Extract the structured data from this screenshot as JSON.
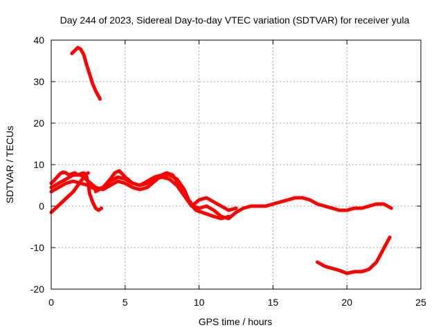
{
  "chart_data": {
    "type": "line",
    "title": "Day 244 of 2023, Sidereal Day-to-day VTEC variation (SDTVAR) for receiver yula",
    "xlabel": "GPS time / hours",
    "ylabel": "SDTVAR / TECUs",
    "xlim": [
      0,
      25
    ],
    "ylim": [
      -20,
      40
    ],
    "xticks": [
      0,
      5,
      10,
      15,
      20,
      25
    ],
    "yticks": [
      -20,
      -10,
      0,
      10,
      20,
      30,
      40
    ],
    "grid": true,
    "line_color": "#ff0000",
    "series": [
      {
        "name": "arc-1",
        "x": [
          1.4,
          1.6,
          1.8,
          2.0,
          2.2,
          2.4,
          2.6,
          2.8,
          3.0,
          3.2,
          3.3
        ],
        "y": [
          36.8,
          37.5,
          38.2,
          37.8,
          36.5,
          34.0,
          31.8,
          29.5,
          27.8,
          26.5,
          25.8
        ]
      },
      {
        "name": "arc-2",
        "x": [
          0.0,
          0.2,
          0.4,
          0.6,
          0.8,
          1.0,
          1.2,
          1.4,
          1.6,
          1.8,
          2.0,
          2.2,
          2.4,
          2.5,
          2.6,
          2.8,
          3.0,
          3.2,
          3.4
        ],
        "y": [
          5.5,
          6.2,
          7.0,
          7.8,
          8.2,
          8.0,
          7.5,
          7.8,
          8.0,
          7.5,
          7.8,
          8.0,
          7.0,
          5.5,
          3.0,
          1.0,
          -0.5,
          -1.0,
          -0.5
        ]
      },
      {
        "name": "arc-3",
        "x": [
          0.0,
          0.3,
          0.6,
          0.9,
          1.2,
          1.5,
          1.8,
          2.1,
          2.3,
          2.5
        ],
        "y": [
          -1.5,
          -0.5,
          0.5,
          1.5,
          2.5,
          3.5,
          5.0,
          6.5,
          7.5,
          8.0
        ]
      },
      {
        "name": "arc-4",
        "x": [
          0.0,
          0.5,
          1.0,
          1.5,
          2.0,
          2.5,
          3.0,
          3.5,
          4.0,
          4.3,
          4.6,
          5.0,
          5.5,
          6.0,
          6.5,
          7.0,
          7.5,
          8.0,
          8.5,
          9.0,
          9.3,
          9.6,
          10.0,
          10.5,
          11.0,
          11.5,
          12.0,
          12.5,
          13.0,
          13.5,
          14.0,
          14.5,
          15.0,
          15.5,
          16.0,
          16.5,
          17.0,
          17.5,
          18.0,
          18.5,
          19.0,
          19.5,
          20.0,
          20.5,
          21.0,
          21.5,
          22.0,
          22.5,
          23.0
        ],
        "y": [
          3.5,
          4.5,
          5.5,
          6.0,
          5.5,
          5.0,
          4.0,
          4.5,
          6.5,
          8.0,
          8.5,
          7.0,
          5.5,
          5.0,
          6.0,
          7.0,
          7.5,
          7.5,
          6.5,
          4.0,
          1.5,
          0.0,
          -0.5,
          0.0,
          -1.0,
          -2.5,
          -3.0,
          -1.5,
          -0.5,
          0.0,
          0.0,
          0.0,
          0.5,
          1.0,
          1.5,
          2.0,
          2.0,
          1.5,
          0.5,
          0.0,
          -0.5,
          -1.0,
          -1.0,
          -0.5,
          -0.5,
          0.0,
          0.5,
          0.5,
          -0.5
        ]
      },
      {
        "name": "arc-5",
        "x": [
          0.0,
          0.5,
          1.0,
          1.5,
          2.0,
          2.5,
          3.0,
          3.5,
          4.0,
          4.5,
          5.0,
          5.5,
          6.0,
          6.5,
          7.0,
          7.5,
          7.8,
          8.2,
          8.6,
          9.0,
          9.4,
          9.8,
          10.2,
          10.6,
          11.0,
          11.5,
          12.0
        ],
        "y": [
          4.5,
          5.5,
          6.5,
          7.5,
          7.5,
          6.0,
          4.5,
          4.0,
          5.0,
          6.0,
          5.5,
          4.5,
          4.0,
          4.5,
          6.0,
          7.5,
          8.0,
          7.5,
          5.5,
          3.0,
          0.5,
          -1.0,
          -1.5,
          -2.0,
          -2.5,
          -3.0,
          -2.5
        ]
      },
      {
        "name": "arc-6",
        "x": [
          3.0,
          3.5,
          4.0,
          4.5,
          5.0,
          5.5,
          6.0,
          6.5,
          7.0,
          7.5,
          8.0,
          8.5,
          9.0,
          9.5,
          10.0,
          10.5,
          11.0,
          11.5,
          12.0,
          12.5
        ],
        "y": [
          3.5,
          4.5,
          6.0,
          7.0,
          6.5,
          5.5,
          5.0,
          5.5,
          6.5,
          7.0,
          6.5,
          5.0,
          2.5,
          0.0,
          1.5,
          2.0,
          1.0,
          0.0,
          -1.0,
          -0.5
        ]
      },
      {
        "name": "arc-7",
        "x": [
          18.0,
          18.5,
          19.0,
          19.5,
          20.0,
          20.5,
          21.0,
          21.5,
          22.0,
          22.3,
          22.6,
          22.9
        ],
        "y": [
          -13.5,
          -14.5,
          -15.0,
          -15.5,
          -16.2,
          -15.8,
          -15.8,
          -15.2,
          -13.5,
          -11.5,
          -9.5,
          -7.5
        ]
      }
    ]
  }
}
